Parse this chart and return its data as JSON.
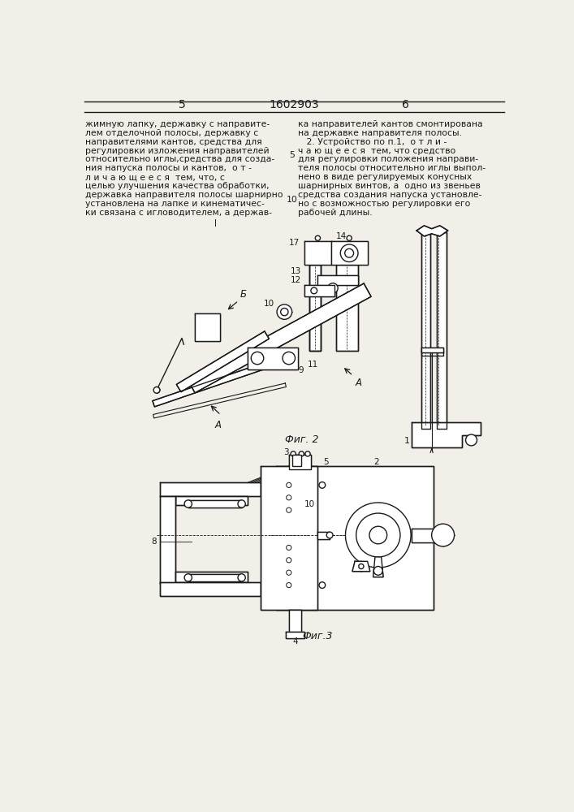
{
  "page_bg": "#f2efe9",
  "line_color": "#1a1a1a",
  "text_color": "#1a1a1a",
  "header": {
    "left_page_num": "5",
    "center_patent": "1602903",
    "right_page_num": "6"
  },
  "left_column_text": [
    "жимную лапку, державку с направите-",
    "лем отделочной полосы, державку с",
    "направителями кантов, средства для",
    "регулировки изложения направителей",
    "относительно иглы,средства для созда-",
    "ния напуска полосы и кантов,  о т -",
    "л и ч а ю щ е е с я  тем, что, с",
    "целью улучшения качества обработки,",
    "державка направителя полосы шарнирно",
    "установлена на лапке и кинематичес-",
    "ки связана с игловодителем, а держав-"
  ],
  "right_column_text": [
    "ка направителей кантов смонтирована",
    "на державке направителя полосы.",
    "   2. Устройство по п.1,  о т л и -",
    "ч а ю щ е е с я  тем, что средство",
    "для регулировки положения направи-",
    "теля полосы относительно иглы выпол-",
    "нено в виде регулируемых конусных",
    "шарнирных винтов, а  одно из звеньев",
    "средства создания напуска установле-",
    "но с возможностью регулировки его",
    "рабочей длины."
  ],
  "fig2_label": "Фиг. 2",
  "fig3_label": "Фиг.3"
}
